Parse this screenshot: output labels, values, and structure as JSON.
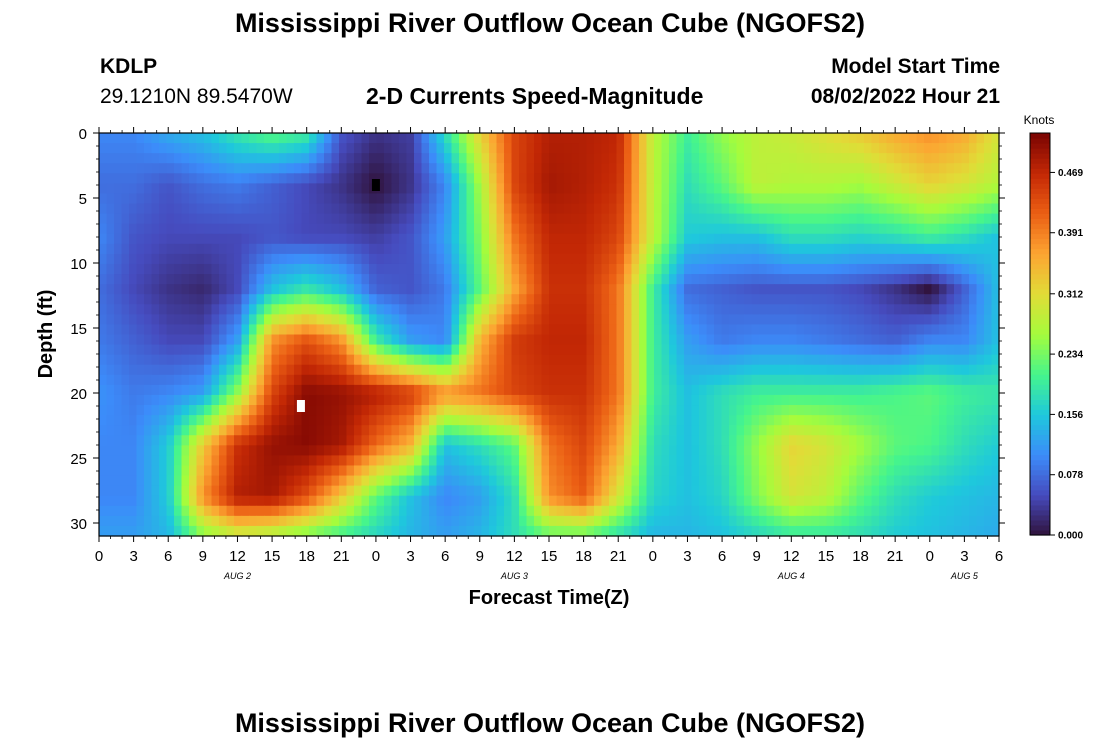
{
  "header": {
    "title": "Mississippi River Outflow Ocean Cube (NGOFS2)",
    "station": "KDLP",
    "coords": "29.1210N  89.5470W",
    "subtitle": "2-D Currents Speed-Magnitude",
    "model_start_label": "Model Start Time",
    "model_start_value": "08/02/2022 Hour 21"
  },
  "footer": {
    "title": "Mississippi River Outflow Ocean Cube (NGOFS2)"
  },
  "chart_data": {
    "type": "heatmap",
    "xlabel": "Forecast Time(Z)",
    "ylabel": "Depth (ft)",
    "x_ticks": [
      "0",
      "3",
      "6",
      "9",
      "12",
      "15",
      "18",
      "21",
      "0",
      "3",
      "6",
      "9",
      "12",
      "15",
      "18",
      "21",
      "0",
      "3",
      "6",
      "9",
      "12",
      "15",
      "18",
      "21",
      "0",
      "3",
      "6"
    ],
    "day_labels": [
      {
        "label": "AUG 2",
        "hour": 12
      },
      {
        "label": "AUG 3",
        "hour": 36
      },
      {
        "label": "AUG 4",
        "hour": 60
      },
      {
        "label": "AUG 5",
        "hour": 75
      }
    ],
    "y_ticks": [
      "0",
      "5",
      "10",
      "15",
      "20",
      "25",
      "30"
    ],
    "xlim_hours": [
      0,
      78
    ],
    "ylim_ft": [
      0,
      31
    ],
    "colorbar": {
      "label": "Knots",
      "ticks": [
        "0.000",
        "0.078",
        "0.156",
        "0.234",
        "0.312",
        "0.391",
        "0.469"
      ],
      "range": [
        0,
        0.52
      ]
    },
    "markers": [
      {
        "color": "#000000",
        "hour": 24,
        "depth": 4
      },
      {
        "color": "#ffffff",
        "hour": 17.5,
        "depth": 21
      }
    ],
    "hours": [
      0,
      3,
      6,
      9,
      12,
      15,
      18,
      21,
      24,
      27,
      30,
      33,
      36,
      39,
      42,
      45,
      48,
      51,
      54,
      57,
      60,
      63,
      66,
      69,
      72,
      75,
      78
    ],
    "depths": [
      0,
      4,
      8,
      12,
      16,
      20,
      24,
      28,
      31
    ],
    "values": [
      [
        0.1,
        0.1,
        0.13,
        0.15,
        0.19,
        0.22,
        0.2,
        0.06,
        0.03,
        0.04,
        0.18,
        0.32,
        0.44,
        0.48,
        0.48,
        0.47,
        0.28,
        0.2,
        0.25,
        0.28,
        0.29,
        0.31,
        0.33,
        0.36,
        0.38,
        0.36,
        0.3
      ],
      [
        0.08,
        0.08,
        0.06,
        0.08,
        0.09,
        0.07,
        0.05,
        0.03,
        0.0,
        0.03,
        0.1,
        0.26,
        0.44,
        0.49,
        0.48,
        0.46,
        0.28,
        0.18,
        0.22,
        0.28,
        0.27,
        0.27,
        0.26,
        0.29,
        0.32,
        0.3,
        0.27
      ],
      [
        0.1,
        0.06,
        0.05,
        0.05,
        0.05,
        0.06,
        0.05,
        0.05,
        0.04,
        0.06,
        0.12,
        0.24,
        0.4,
        0.47,
        0.47,
        0.44,
        0.28,
        0.16,
        0.15,
        0.15,
        0.18,
        0.18,
        0.17,
        0.18,
        0.2,
        0.18,
        0.15
      ],
      [
        0.08,
        0.05,
        0.03,
        0.02,
        0.05,
        0.15,
        0.19,
        0.15,
        0.07,
        0.06,
        0.09,
        0.22,
        0.36,
        0.46,
        0.46,
        0.4,
        0.2,
        0.08,
        0.07,
        0.06,
        0.06,
        0.06,
        0.05,
        0.03,
        0.0,
        0.07,
        0.15
      ],
      [
        0.09,
        0.07,
        0.05,
        0.05,
        0.12,
        0.38,
        0.43,
        0.38,
        0.2,
        0.12,
        0.1,
        0.35,
        0.45,
        0.47,
        0.47,
        0.4,
        0.2,
        0.12,
        0.09,
        0.1,
        0.1,
        0.09,
        0.08,
        0.07,
        0.1,
        0.1,
        0.15
      ],
      [
        0.11,
        0.09,
        0.1,
        0.12,
        0.25,
        0.44,
        0.51,
        0.5,
        0.48,
        0.45,
        0.38,
        0.4,
        0.44,
        0.46,
        0.46,
        0.4,
        0.2,
        0.15,
        0.18,
        0.2,
        0.2,
        0.2,
        0.2,
        0.21,
        0.22,
        0.2,
        0.19
      ],
      [
        0.1,
        0.1,
        0.16,
        0.33,
        0.46,
        0.5,
        0.51,
        0.49,
        0.41,
        0.35,
        0.15,
        0.18,
        0.22,
        0.4,
        0.44,
        0.36,
        0.18,
        0.15,
        0.18,
        0.25,
        0.32,
        0.3,
        0.26,
        0.22,
        0.21,
        0.18,
        0.16
      ],
      [
        0.1,
        0.1,
        0.16,
        0.38,
        0.48,
        0.49,
        0.43,
        0.33,
        0.22,
        0.15,
        0.1,
        0.12,
        0.18,
        0.38,
        0.42,
        0.3,
        0.17,
        0.15,
        0.17,
        0.24,
        0.3,
        0.28,
        0.22,
        0.18,
        0.16,
        0.15,
        0.14
      ],
      [
        0.12,
        0.12,
        0.14,
        0.24,
        0.28,
        0.26,
        0.23,
        0.2,
        0.17,
        0.14,
        0.12,
        0.14,
        0.18,
        0.22,
        0.22,
        0.18,
        0.14,
        0.14,
        0.15,
        0.17,
        0.19,
        0.19,
        0.18,
        0.16,
        0.15,
        0.14,
        0.13
      ]
    ]
  }
}
